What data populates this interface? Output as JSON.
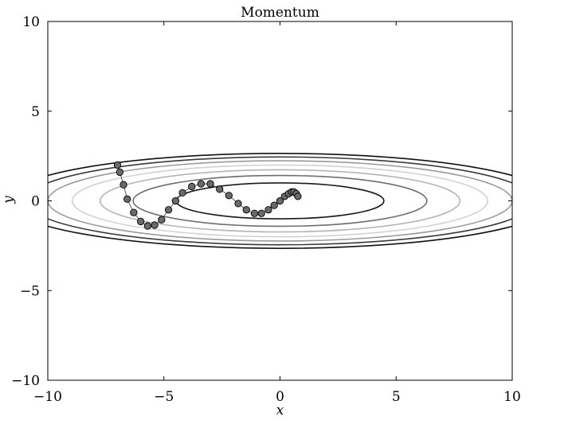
{
  "chart_data": {
    "type": "line",
    "title": "Momentum",
    "xlabel": "x",
    "ylabel": "y",
    "xlim": [
      -10,
      10
    ],
    "ylim": [
      -10,
      10
    ],
    "x_ticks": [
      -10,
      -5,
      0,
      5,
      10
    ],
    "y_ticks": [
      -10,
      -5,
      0,
      5,
      10
    ],
    "x_tick_labels": [
      "−10",
      "−5",
      "0",
      "5",
      "10"
    ],
    "y_tick_labels": [
      "−10",
      "−5",
      "0",
      "5",
      "10"
    ],
    "grid": false,
    "contours": {
      "function": "f(x, y) = x^2/20 + y^2",
      "levels": [
        {
          "level": 1.0,
          "color": "#1a1a1a"
        },
        {
          "level": 2.0,
          "color": "#6e6e6e"
        },
        {
          "level": 3.0,
          "color": "#b4b4b4"
        },
        {
          "level": 4.0,
          "color": "#d2d2d2"
        },
        {
          "level": 5.0,
          "color": "#9a9a9a"
        },
        {
          "level": 6.0,
          "color": "#3a3a3a"
        },
        {
          "level": 7.0,
          "color": "#111111"
        }
      ]
    },
    "series": [
      {
        "x": [
          -7.0,
          -6.9,
          -6.74,
          -6.58,
          -6.3,
          -6.0,
          -5.7,
          -5.4,
          -5.1,
          -4.8,
          -4.5,
          -4.2,
          -3.8,
          -3.4,
          -3.0,
          -2.6,
          -2.2,
          -1.8,
          -1.45,
          -1.1,
          -0.8,
          -0.5,
          -0.25,
          0.0,
          0.2,
          0.37,
          0.5,
          0.6,
          0.7,
          0.77
        ],
        "y": [
          2.0,
          1.6,
          0.9,
          0.1,
          -0.65,
          -1.15,
          -1.4,
          -1.35,
          -1.05,
          -0.5,
          0.0,
          0.45,
          0.8,
          0.95,
          0.95,
          0.65,
          0.3,
          -0.15,
          -0.5,
          -0.7,
          -0.7,
          -0.5,
          -0.25,
          0.0,
          0.25,
          0.4,
          0.5,
          0.5,
          0.4,
          0.25
        ]
      }
    ],
    "colors": {
      "marker_fill": "#6a6a6a",
      "marker_stroke": "#000000",
      "path": "#555555"
    }
  }
}
